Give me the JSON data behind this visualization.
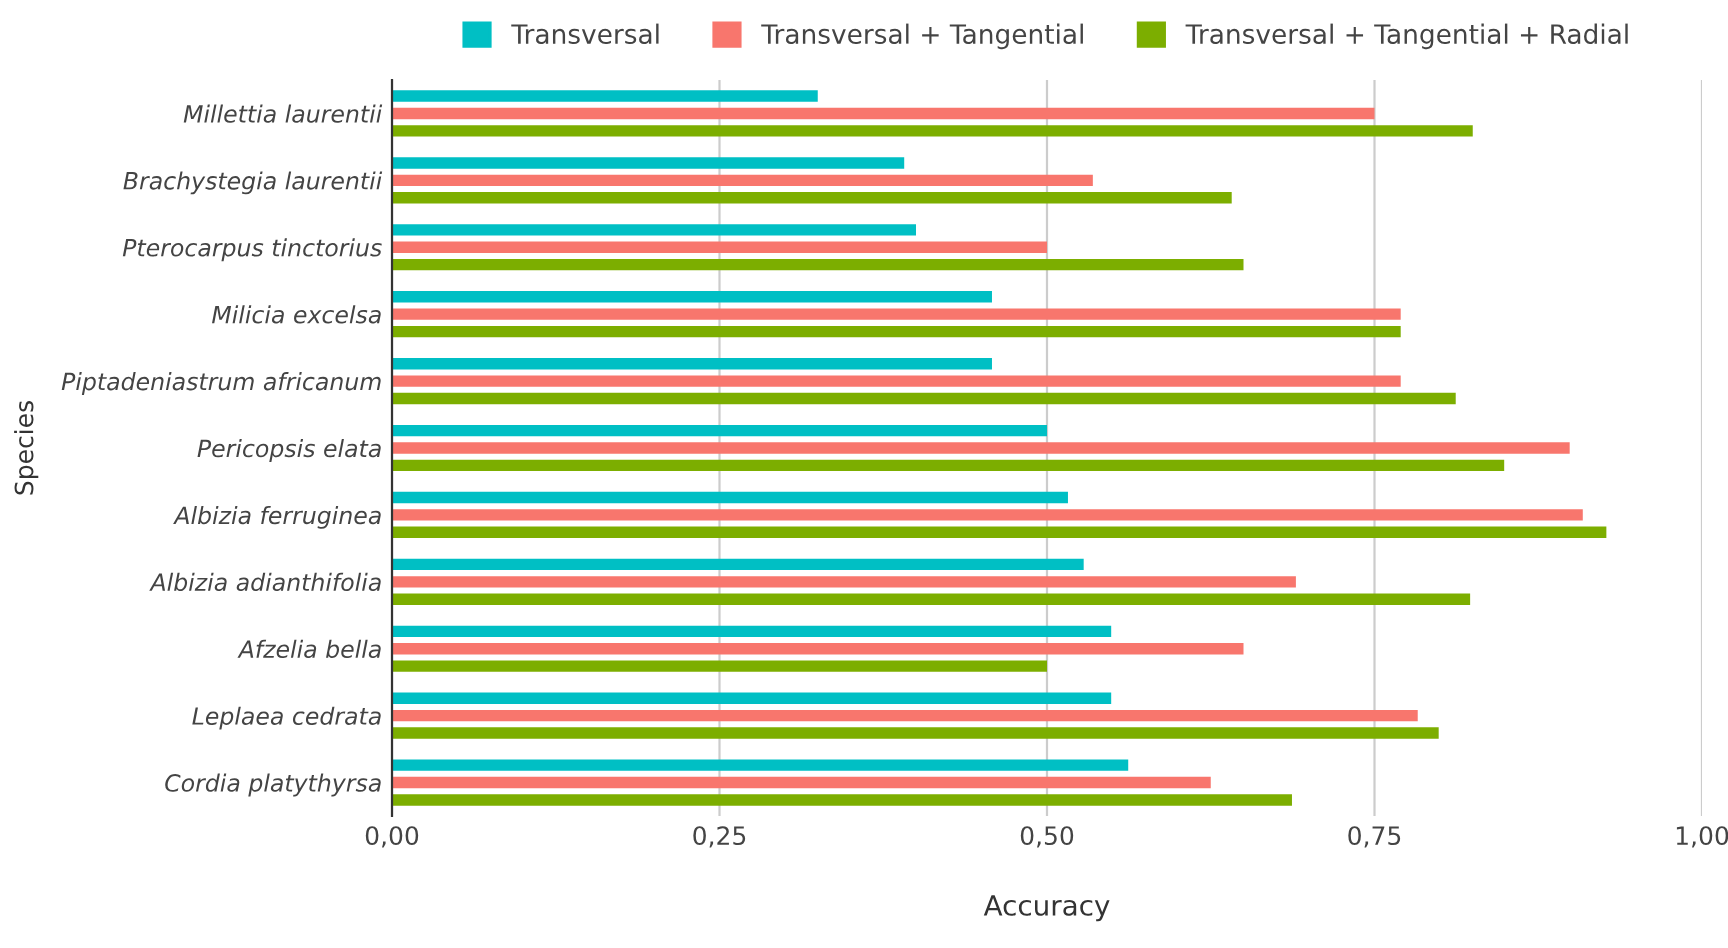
{
  "chart_data": {
    "type": "bar",
    "orientation": "horizontal",
    "xlabel": "Accuracy",
    "ylabel": "Species",
    "categories": [
      "Millettia laurentii",
      "Brachystegia laurentii",
      "Pterocarpus tinctorius",
      "Milicia excelsa",
      "Piptadeniastrum africanum",
      "Pericopsis elata",
      "Albizia ferruginea",
      "Albizia adianthifolia",
      "Afzelia bella",
      "Leplaea cedrata",
      "Cordia platythyrsa"
    ],
    "series": [
      {
        "name": "Transversal",
        "color": "#00bfc4",
        "values": [
          0.325,
          0.391,
          0.4,
          0.458,
          0.458,
          0.5,
          0.516,
          0.528,
          0.549,
          0.549,
          0.562
        ]
      },
      {
        "name": "Transversal + Tangential",
        "color": "#f8766d",
        "values": [
          0.75,
          0.535,
          0.5,
          0.77,
          0.77,
          0.899,
          0.909,
          0.69,
          0.65,
          0.783,
          0.625
        ]
      },
      {
        "name": "Transversal + Tangential + Radial",
        "color": "#7cae00",
        "values": [
          0.825,
          0.641,
          0.65,
          0.77,
          0.812,
          0.849,
          0.927,
          0.823,
          0.5,
          0.799,
          0.687
        ]
      }
    ],
    "xlim": [
      0,
      1
    ],
    "xticks": [
      {
        "value": 0,
        "label": "0,00"
      },
      {
        "value": 0.25,
        "label": "0,25"
      },
      {
        "value": 0.5,
        "label": "0,50"
      },
      {
        "value": 0.75,
        "label": "0,75"
      },
      {
        "value": 1,
        "label": "1,00"
      }
    ],
    "grid": "x",
    "legend": "top"
  }
}
